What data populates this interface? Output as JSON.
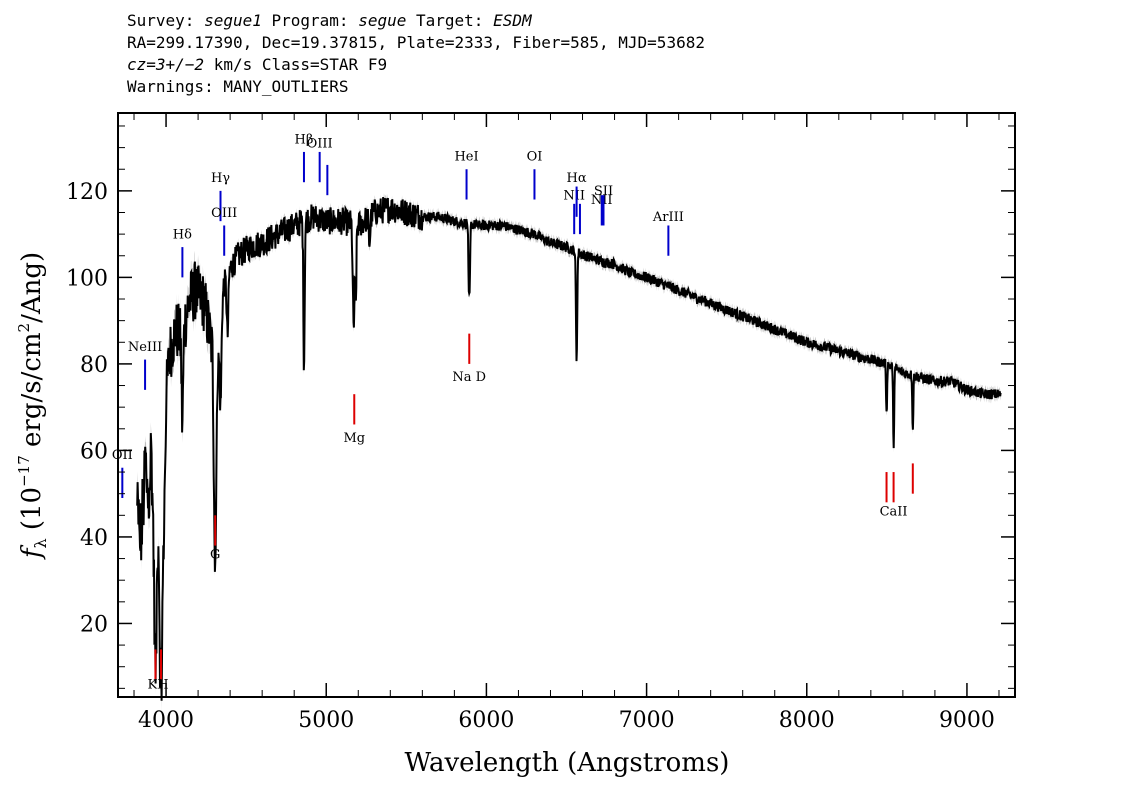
{
  "header": {
    "line1_a": "Survey: ",
    "survey": "segue1",
    "line1_b": " Program: ",
    "program": "segue",
    "line1_c": " Target: ",
    "target": "ESDM",
    "line2": "RA=299.17390, Dec=19.37815, Plate=2333, Fiber=585, MJD=53682",
    "line3_a": "cz=3+/−2",
    "line3_b": " km/s Class=STAR F9",
    "line4": "Warnings: MANY_OUTLIERS"
  },
  "chart_data": {
    "type": "line",
    "xlabel": "Wavelength (Angstroms)",
    "ylabel_prefix": "f",
    "ylabel_sub": "λ",
    "ylabel_main": " (10",
    "ylabel_exp": "−17",
    "ylabel_rest": " erg/s/cm",
    "ylabel_exp2": "2",
    "ylabel_end": "/Ang)",
    "xlim": [
      3700,
      9300
    ],
    "ylim": [
      3,
      138
    ],
    "xticks": [
      4000,
      5000,
      6000,
      7000,
      8000,
      9000
    ],
    "yticks": [
      20,
      40,
      60,
      80,
      100,
      120
    ],
    "colors": {
      "spectrum": "#000000",
      "error": "#bbbbbb",
      "emission": "#0000cc",
      "absorption": "#dd0000"
    },
    "spectrum_anchors": [
      [
        3820,
        47
      ],
      [
        3840,
        38
      ],
      [
        3855,
        45
      ],
      [
        3870,
        58
      ],
      [
        3890,
        48
      ],
      [
        3905,
        60
      ],
      [
        3915,
        52
      ],
      [
        3935,
        25
      ],
      [
        3950,
        42
      ],
      [
        3968,
        20
      ],
      [
        3985,
        38
      ],
      [
        4000,
        72
      ],
      [
        4020,
        82
      ],
      [
        4060,
        88
      ],
      [
        4100,
        86
      ],
      [
        4140,
        94
      ],
      [
        4180,
        97
      ],
      [
        4240,
        94
      ],
      [
        4290,
        83
      ],
      [
        4305,
        58
      ],
      [
        4320,
        78
      ],
      [
        4360,
        98
      ],
      [
        4400,
        102
      ],
      [
        4450,
        105
      ],
      [
        4520,
        107
      ],
      [
        4600,
        108
      ],
      [
        4700,
        110
      ],
      [
        4800,
        112
      ],
      [
        4860,
        113
      ],
      [
        4920,
        114
      ],
      [
        5000,
        113
      ],
      [
        5100,
        113
      ],
      [
        5200,
        112
      ],
      [
        5300,
        115
      ],
      [
        5400,
        116
      ],
      [
        5500,
        115
      ],
      [
        5600,
        114
      ],
      [
        5700,
        114
      ],
      [
        5800,
        113
      ],
      [
        5950,
        112
      ],
      [
        6100,
        112
      ],
      [
        6200,
        111
      ],
      [
        6300,
        110
      ],
      [
        6400,
        108
      ],
      [
        6500,
        107
      ],
      [
        6620,
        105
      ],
      [
        6700,
        104
      ],
      [
        6800,
        103
      ],
      [
        6900,
        101
      ],
      [
        7000,
        100
      ],
      [
        7200,
        97
      ],
      [
        7400,
        94
      ],
      [
        7600,
        91
      ],
      [
        7800,
        88
      ],
      [
        8000,
        85
      ],
      [
        8200,
        83
      ],
      [
        8400,
        81
      ],
      [
        8500,
        80
      ],
      [
        8600,
        78
      ],
      [
        8700,
        77
      ],
      [
        8800,
        76
      ],
      [
        8900,
        76
      ],
      [
        9000,
        74
      ],
      [
        9100,
        73
      ],
      [
        9200,
        73
      ]
    ],
    "absorption_dips": [
      [
        3933.7,
        -19,
        8
      ],
      [
        3968.5,
        -17,
        8
      ],
      [
        4101.7,
        -20,
        5
      ],
      [
        4307,
        -27,
        7
      ],
      [
        4340.5,
        -18,
        5
      ],
      [
        4384,
        -14,
        5
      ],
      [
        4861.3,
        -33,
        4
      ],
      [
        5167,
        -13,
        4
      ],
      [
        5173,
        -18,
        4
      ],
      [
        5184,
        -18,
        4
      ],
      [
        5270,
        -6,
        5
      ],
      [
        5890,
        -15,
        3
      ],
      [
        5896,
        -13,
        3
      ],
      [
        6563,
        -25,
        4
      ],
      [
        8498,
        -12,
        3
      ],
      [
        8542,
        -20,
        3
      ],
      [
        8662,
        -13,
        3
      ]
    ],
    "lines": [
      {
        "label": "KH",
        "wave": 3950,
        "kind": "absorption",
        "y1": 7,
        "y2": 14,
        "label_y": 5,
        "double": [
          3933.7,
          3968.5
        ]
      },
      {
        "label": "G",
        "wave": 4307,
        "kind": "absorption",
        "y1": 38,
        "y2": 45,
        "label_y": 35
      },
      {
        "label": "Mg",
        "wave": 5175,
        "kind": "absorption",
        "y1": 66,
        "y2": 73,
        "label_y": 62
      },
      {
        "label": "Na D",
        "wave": 5893,
        "kind": "absorption",
        "y1": 80,
        "y2": 87,
        "label_y": 76
      },
      {
        "label": "CaII",
        "wave": 8542,
        "kind": "absorption",
        "y1": 48,
        "y2": 55,
        "label_y": 45,
        "double": [
          8498,
          8542
        ],
        "extra": [
          [
            8662,
            50,
            57
          ]
        ]
      },
      {
        "label": "OII",
        "wave": 3727,
        "kind": "emission",
        "y1": 49,
        "y2": 56,
        "label_y": 58
      },
      {
        "label": "NeIII",
        "wave": 3869,
        "kind": "emission",
        "y1": 74,
        "y2": 81,
        "label_y": 83
      },
      {
        "label": "Hδ",
        "wave": 4102,
        "kind": "emission",
        "y1": 100,
        "y2": 107,
        "label_y": 109
      },
      {
        "label": "Hγ",
        "wave": 4340,
        "kind": "emission",
        "y1": 113,
        "y2": 120,
        "label_y": 122
      },
      {
        "label": "OIII",
        "wave": 4363,
        "kind": "emission",
        "y1": 105,
        "y2": 112,
        "label_y": 114
      },
      {
        "label": "Hβ",
        "wave": 4861,
        "kind": "emission",
        "y1": 122,
        "y2": 129,
        "label_y": 131
      },
      {
        "label": "OIII",
        "wave": 4959,
        "kind": "emission",
        "y1": 122,
        "y2": 129,
        "label_y": 130
      },
      {
        "label": "OIII_2",
        "wave": 5007,
        "kind": "emission",
        "y1": 119,
        "y2": 126,
        "label_y": 999
      },
      {
        "label": "HeI",
        "wave": 5876,
        "kind": "emission",
        "y1": 118,
        "y2": 125,
        "label_y": 127
      },
      {
        "label": "OI",
        "wave": 6300,
        "kind": "emission",
        "y1": 118,
        "y2": 125,
        "label_y": 127
      },
      {
        "label": "NII",
        "wave": 6548,
        "kind": "emission",
        "y1": 110,
        "y2": 117,
        "label_y": 118
      },
      {
        "label": "Hα",
        "wave": 6563,
        "kind": "emission",
        "y1": 114,
        "y2": 121,
        "label_y": 122
      },
      {
        "label": "NII_2",
        "wave": 6584,
        "kind": "emission",
        "y1": 110,
        "y2": 117,
        "label_y": 999
      },
      {
        "label": "NII",
        "wave": 6720,
        "kind": "emission",
        "y1": 112,
        "y2": 119,
        "label_y": 117
      },
      {
        "label": "SII",
        "wave": 6731,
        "kind": "emission",
        "y1": 112,
        "y2": 119,
        "label_y": 119
      },
      {
        "label": "ArIII",
        "wave": 7136,
        "kind": "emission",
        "y1": 105,
        "y2": 112,
        "label_y": 113
      }
    ],
    "label_texts": {
      "KH": "KH",
      "G": "G",
      "Mg": "Mg",
      "Na D": "Na D",
      "CaII": "CaII",
      "OII": "OII",
      "NeIII": "NeIII",
      "Hδ": "Hδ",
      "Hγ": "Hγ",
      "OIII": "OIII",
      "Hβ": "Hβ",
      "HeI": "HeI",
      "OI": "OI",
      "NII": "NII",
      "Hα": "Hα",
      "SII": "SII",
      "ArIII": "ArIII"
    }
  }
}
